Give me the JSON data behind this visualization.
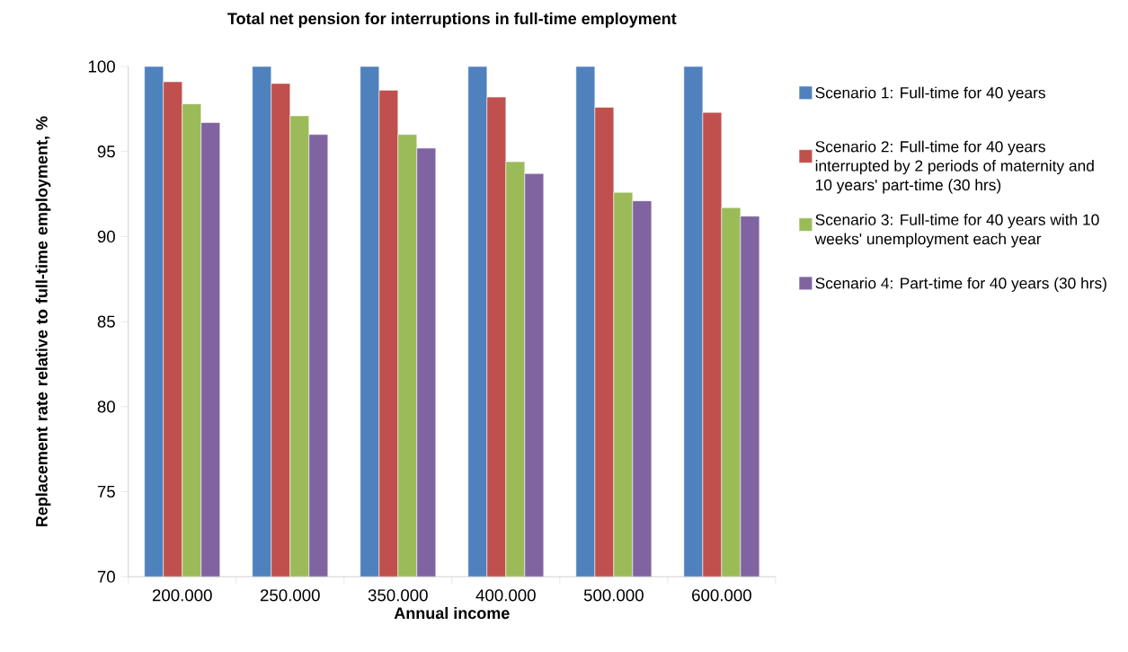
{
  "chart_data": {
    "type": "bar",
    "title": "Total net pension for interruptions in full-time employment",
    "xlabel": "Annual income",
    "ylabel": "Replacement rate relative to full-time employment, %",
    "categories": [
      "200.000",
      "250.000",
      "350.000",
      "400.000",
      "500.000",
      "600.000"
    ],
    "series": [
      {
        "name": "Scenario 1: Full-time for 40 years",
        "color": "#4f81bd",
        "values": [
          100,
          100,
          100,
          100,
          100,
          100
        ]
      },
      {
        "name": "Scenario 2: Full-time for 40 years interrupted by 2 periods of maternity and 10 years' part-time (30 hrs)",
        "color": "#c0504d",
        "values": [
          99.1,
          99.0,
          98.6,
          98.2,
          97.6,
          97.3
        ]
      },
      {
        "name": "Scenario 3: Full-time for 40 years with 10 weeks' unemployment each year",
        "color": "#9bbb59",
        "values": [
          97.8,
          97.1,
          96.0,
          94.4,
          92.6,
          91.7
        ]
      },
      {
        "name": "Scenario 4: Part-time for 40 years (30 hrs)",
        "color": "#8064a2",
        "values": [
          96.7,
          96.0,
          95.2,
          93.7,
          92.1,
          91.2
        ]
      }
    ],
    "ylim": [
      70,
      100
    ],
    "yticks": [
      70,
      75,
      80,
      85,
      90,
      95,
      100
    ],
    "legend": "right"
  }
}
